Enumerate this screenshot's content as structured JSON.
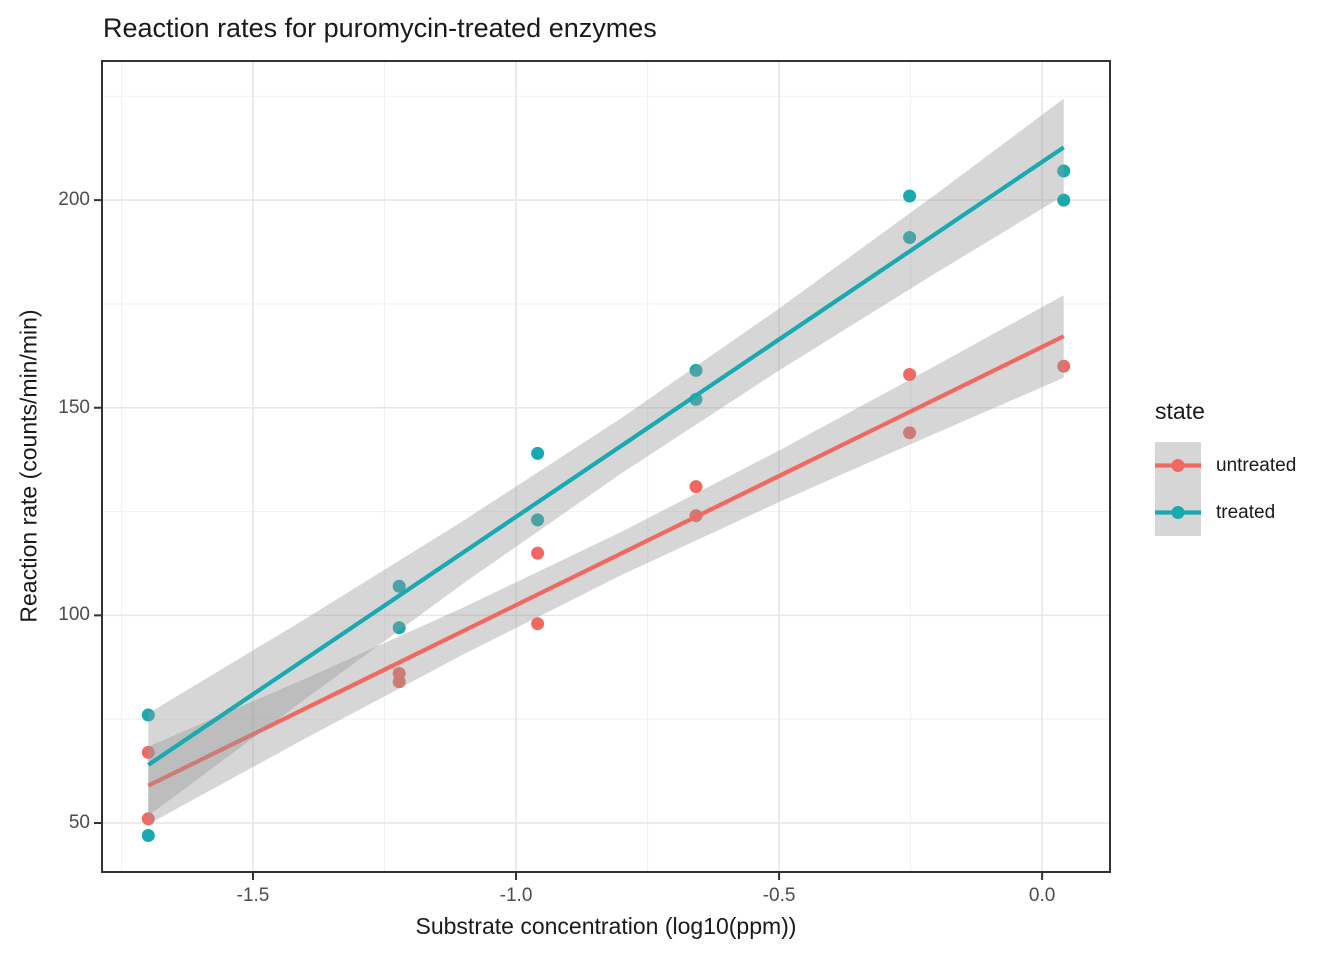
{
  "chart_data": {
    "type": "scatter",
    "title": "Reaction rates for puromycin-treated enzymes",
    "xlabel": "Substrate concentration (log10(ppm))",
    "ylabel": "Reaction rate (counts/min/min)",
    "xlim": [
      -1.787,
      0.129
    ],
    "ylim": [
      38.2,
      233.5
    ],
    "x_major_ticks": [
      -1.5,
      -1.0,
      -0.5,
      0.0
    ],
    "x_tick_labels": [
      "-1.5",
      "-1.0",
      "-0.5",
      "0.0"
    ],
    "x_minor_ticks": [
      -1.75,
      -1.25,
      -0.75,
      -0.25
    ],
    "y_major_ticks": [
      50,
      100,
      150,
      200
    ],
    "y_tick_labels": [
      "50",
      "100",
      "150",
      "200"
    ],
    "y_minor_ticks": [
      75,
      125,
      175,
      225
    ],
    "grid": true,
    "legend_position": "right",
    "ribbon_fill": "#999999",
    "ribbon_opacity": 0.4,
    "legend": {
      "title": "state",
      "entries": [
        {
          "label": "untreated",
          "color": "#F0685F"
        },
        {
          "label": "treated",
          "color": "#18A9B1"
        }
      ]
    },
    "series": [
      {
        "name": "untreated",
        "color": "#F0685F",
        "points": [
          [
            -1.699,
            67
          ],
          [
            -1.699,
            51
          ],
          [
            -1.222,
            84
          ],
          [
            -1.222,
            86
          ],
          [
            -0.959,
            98
          ],
          [
            -0.959,
            115
          ],
          [
            -0.658,
            131
          ],
          [
            -0.658,
            124
          ],
          [
            -0.252,
            144
          ],
          [
            -0.252,
            158
          ],
          [
            0.041,
            160
          ]
        ],
        "trend": {
          "x": [
            -1.699,
            0.041
          ],
          "y": [
            59.0,
            167.2
          ]
        },
        "ribbon": {
          "x": [
            -1.699,
            -1.4,
            -1.1,
            -0.8,
            -0.5,
            -0.2,
            0.041
          ],
          "upper": [
            68.4,
            84.8,
            101.9,
            120.1,
            139.7,
            160.3,
            177.1
          ],
          "lower": [
            49.7,
            70.4,
            90.6,
            109.7,
            127.3,
            144.0,
            157.2
          ]
        }
      },
      {
        "name": "treated",
        "color": "#18A9B1",
        "points": [
          [
            -1.699,
            76
          ],
          [
            -1.699,
            47
          ],
          [
            -1.222,
            97
          ],
          [
            -1.222,
            107
          ],
          [
            -0.959,
            123
          ],
          [
            -0.959,
            139
          ],
          [
            -0.658,
            159
          ],
          [
            -0.658,
            152
          ],
          [
            -0.252,
            191
          ],
          [
            -0.252,
            201
          ],
          [
            0.041,
            207
          ],
          [
            0.041,
            200
          ]
        ],
        "trend": {
          "x": [
            -1.699,
            0.041
          ],
          "y": [
            64.0,
            212.7
          ]
        },
        "ribbon": {
          "x": [
            -1.699,
            -1.4,
            -1.1,
            -0.8,
            -0.5,
            -0.2,
            0.041
          ],
          "upper": [
            76.4,
            99.2,
            122.8,
            147.5,
            173.9,
            201.6,
            224.4
          ],
          "lower": [
            51.7,
            79.9,
            107.7,
            134.2,
            159.0,
            182.6,
            201.1
          ]
        }
      }
    ]
  }
}
